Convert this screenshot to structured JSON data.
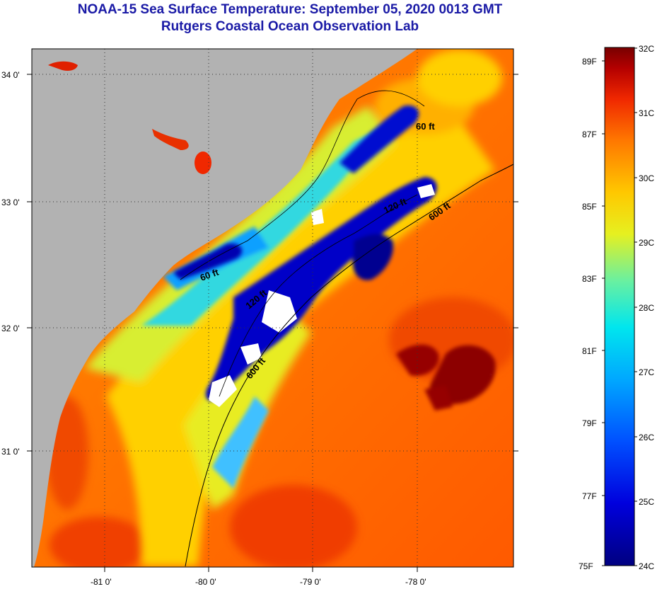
{
  "header": {
    "title": "NOAA-15 Sea Surface Temperature:  September 05, 2020 0013 GMT",
    "subtitle": "Rutgers Coastal Ocean Observation Lab"
  },
  "map": {
    "lon_ticks": [
      "-81 0'",
      "-80 0'",
      "-79 0'",
      "-78 0'"
    ],
    "lat_ticks": [
      "34 0'",
      "33 0'",
      "32 0'",
      "31 0'"
    ],
    "contour_labels": [
      "60 ft",
      "120 ft",
      "600 ft",
      "60 ft",
      "120 ft",
      "600 ft"
    ],
    "colors": {
      "land": "#b2b2b2",
      "cloud": "#ffffff"
    }
  },
  "colorbar": {
    "celsius_labels": [
      "32C",
      "31C",
      "30C",
      "29C",
      "28C",
      "27C",
      "26C",
      "25C",
      "24C"
    ],
    "fahrenheit_labels": [
      "89F",
      "87F",
      "85F",
      "83F",
      "81F",
      "79F",
      "77F",
      "75F"
    ]
  }
}
